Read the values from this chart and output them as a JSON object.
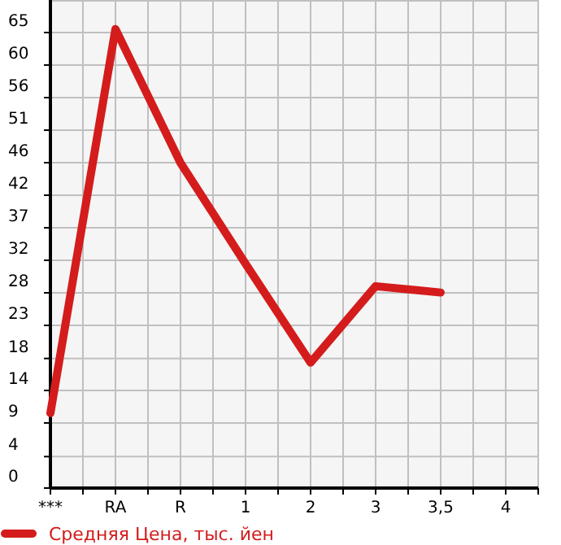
{
  "chart_data": {
    "type": "line",
    "categories": [
      "***",
      "RA",
      "R",
      "1",
      "2",
      "3",
      "3,5",
      "4"
    ],
    "series": [
      {
        "name": "Средняя Цена, тыс. йен",
        "color": "#d41c1c",
        "values": [
          10.7,
          65.5,
          46.4,
          32.0,
          17.9,
          28.8,
          27.9,
          null
        ]
      }
    ],
    "ylim": [
      0,
      69.64
    ],
    "yticks": [
      0,
      {
        "value": 4.49,
        "label": "4"
      },
      {
        "value": 9.29,
        "label": "9"
      },
      {
        "value": 13.93,
        "label": "14"
      },
      {
        "value": 18.49,
        "label": "18"
      },
      {
        "value": 23.21,
        "label": "23"
      },
      {
        "value": 27.86,
        "label": "28"
      },
      {
        "value": 32.5,
        "label": "32"
      },
      {
        "value": 37.14,
        "label": "37"
      },
      {
        "value": 41.79,
        "label": "42"
      },
      {
        "value": 46.43,
        "label": "46"
      },
      {
        "value": 51.07,
        "label": "51"
      },
      {
        "value": 55.71,
        "label": "56"
      },
      {
        "value": 60.36,
        "label": "60"
      },
      65
    ],
    "grid": true,
    "legend": "bottom left",
    "marker": "none",
    "line_style": "solid"
  }
}
